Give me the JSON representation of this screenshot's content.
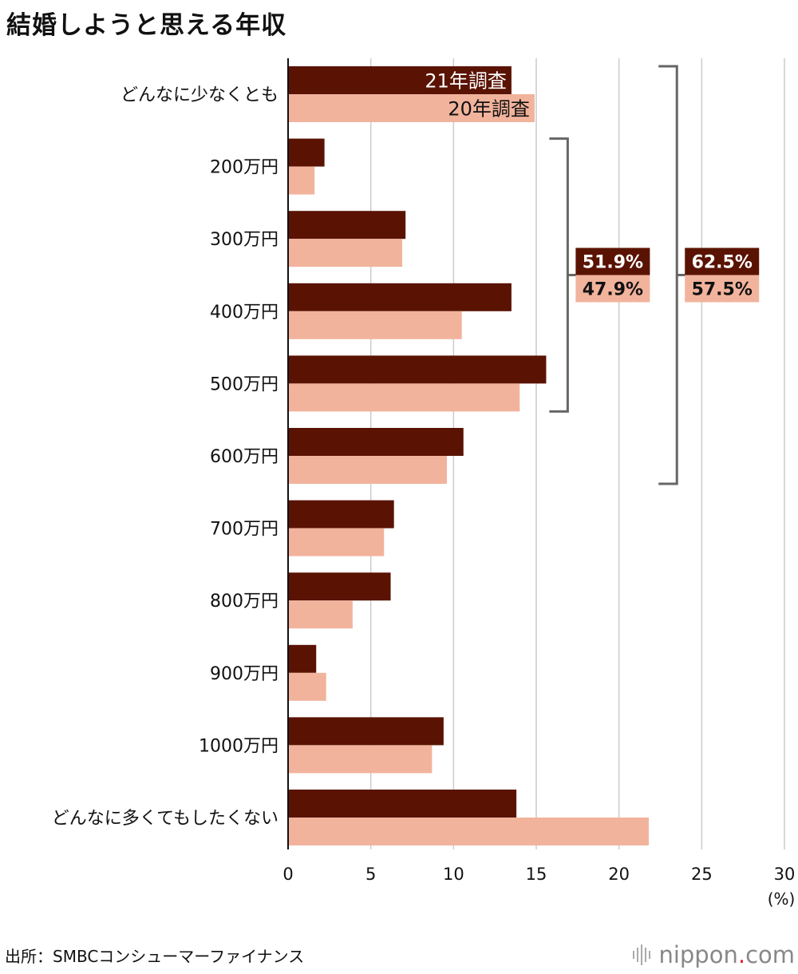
{
  "title": "結婚しようと思える年収",
  "source": "出所：SMBCコンシューマーファイナンス",
  "logo": {
    "name": "nippon",
    "dot": ".",
    "suffix": "com"
  },
  "colors": {
    "series21": "#5a1303",
    "series20": "#f2b39c",
    "grid": "#cccccc",
    "bracket": "#666666"
  },
  "chart_data": {
    "type": "bar",
    "orientation": "horizontal",
    "categories": [
      "どんなに少なくとも",
      "200万円",
      "300万円",
      "400万円",
      "500万円",
      "600万円",
      "700万円",
      "800万円",
      "900万円",
      "1000万円",
      "どんなに多くてもしたくない"
    ],
    "series": [
      {
        "name": "21年調査",
        "color": "#5a1303",
        "values": [
          13.5,
          2.2,
          7.1,
          13.5,
          15.6,
          10.6,
          6.4,
          6.2,
          1.7,
          9.4,
          13.8
        ]
      },
      {
        "name": "20年調査",
        "color": "#f2b39c",
        "values": [
          14.9,
          1.6,
          6.9,
          10.5,
          14.0,
          9.6,
          5.8,
          3.9,
          2.3,
          8.7,
          21.8
        ]
      }
    ],
    "xlim": [
      0,
      30
    ],
    "xticks": [
      "0",
      "5",
      "10",
      "15",
      "20",
      "25",
      "30"
    ],
    "xunit": "(%)",
    "grid": true,
    "annotations": [
      {
        "from": "200万円",
        "to": "500万円",
        "value21": "51.9%",
        "value20": "47.9%"
      },
      {
        "from": "どんなに少なくとも",
        "to": "600万円",
        "value21": "62.5%",
        "value20": "57.5%"
      }
    ]
  }
}
